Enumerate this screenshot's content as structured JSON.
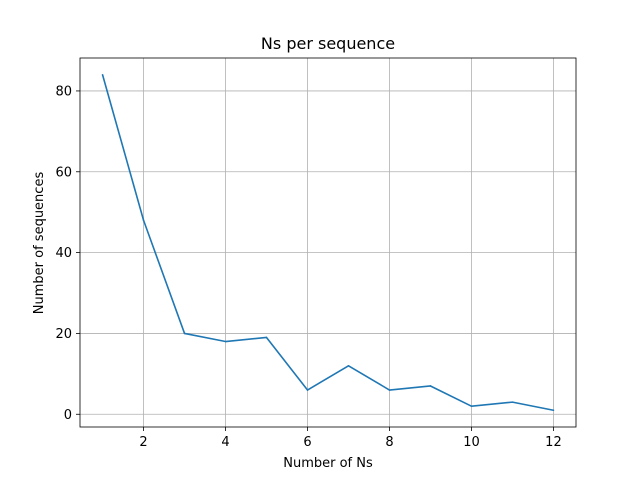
{
  "chart_data": {
    "type": "line",
    "title": "Ns per sequence",
    "xlabel": "Number of Ns",
    "ylabel": "Number of sequences",
    "x": [
      1,
      2,
      3,
      4,
      5,
      6,
      7,
      8,
      9,
      10,
      11,
      12
    ],
    "series": [
      {
        "values": [
          84,
          48,
          20,
          18,
          19,
          6,
          12,
          6,
          7,
          2,
          3,
          1
        ],
        "color": "#1f77b4"
      }
    ],
    "xlim": [
      0.45,
      12.55
    ],
    "ylim": [
      -3.15,
      88.15
    ],
    "xticks": [
      2,
      4,
      6,
      8,
      10,
      12
    ],
    "xtick_labels": [
      "2",
      "4",
      "6",
      "8",
      "10",
      "12"
    ],
    "yticks": [
      0,
      20,
      40,
      60,
      80
    ],
    "ytick_labels": [
      "0",
      "20",
      "40",
      "60",
      "80"
    ],
    "grid": true,
    "legend": "none"
  }
}
